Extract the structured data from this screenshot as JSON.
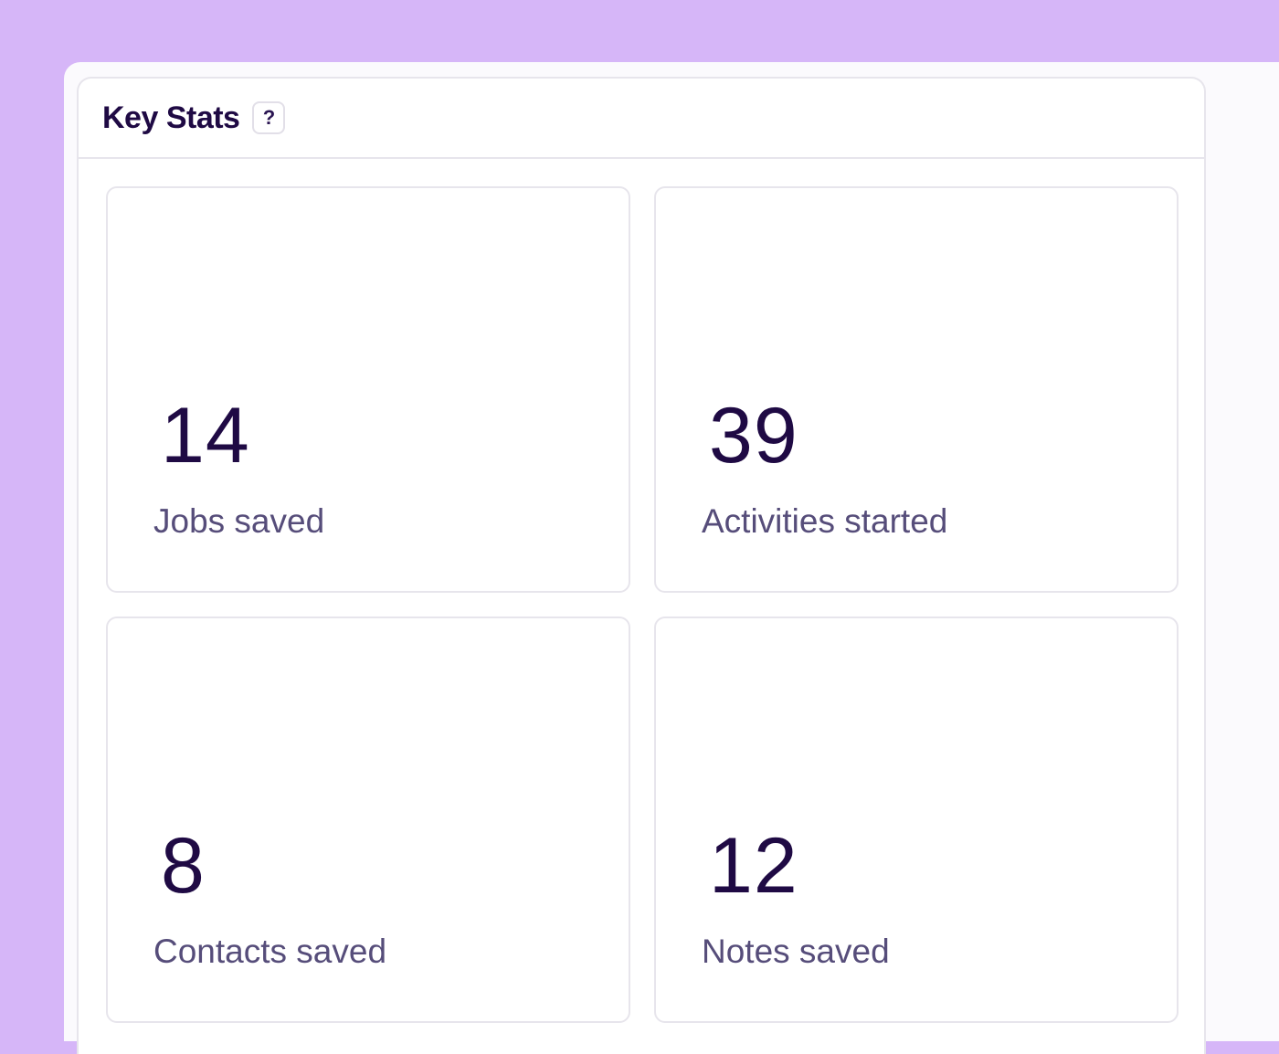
{
  "header": {
    "title": "Key Stats",
    "help_label": "?"
  },
  "stats": [
    {
      "value": "14",
      "label": "Jobs saved"
    },
    {
      "value": "39",
      "label": "Activities started"
    },
    {
      "value": "8",
      "label": "Contacts saved"
    },
    {
      "value": "12",
      "label": "Notes saved"
    }
  ],
  "colors": {
    "background": "#d6b6f8",
    "title": "#1f0a44",
    "label": "#564d7a",
    "border": "#e7e5ec"
  }
}
